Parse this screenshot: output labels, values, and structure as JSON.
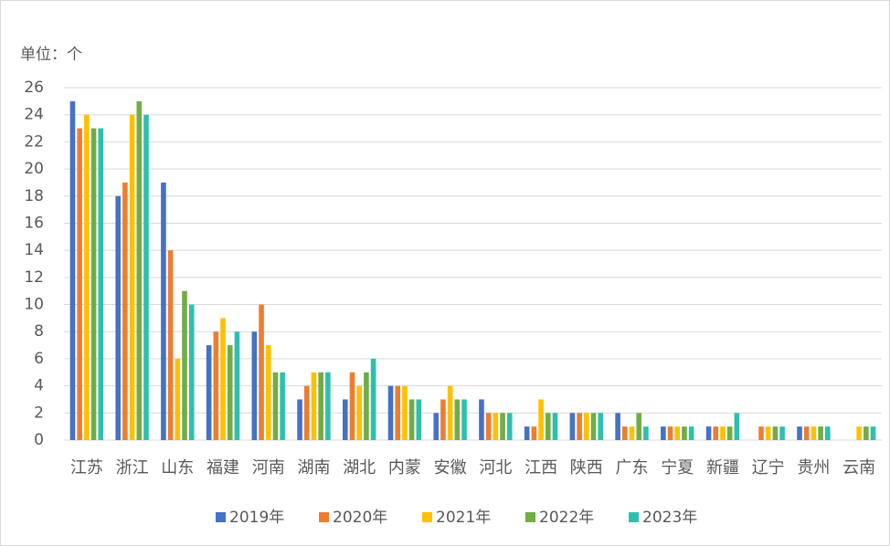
{
  "chart_data": {
    "type": "bar",
    "y_label": "单位：个",
    "categories": [
      "江苏",
      "浙江",
      "山东",
      "福建",
      "河南",
      "湖南",
      "湖北",
      "内蒙",
      "安徽",
      "河北",
      "江西",
      "陕西",
      "广东",
      "宁夏",
      "新疆",
      "辽宁",
      "贵州",
      "云南"
    ],
    "series": [
      {
        "name": "2019年",
        "color": "#4472c4",
        "values": [
          25,
          18,
          19,
          7,
          8,
          3,
          3,
          4,
          2,
          3,
          1,
          2,
          2,
          1,
          1,
          0,
          1,
          0
        ]
      },
      {
        "name": "2020年",
        "color": "#ed7d31",
        "values": [
          23,
          19,
          14,
          8,
          10,
          4,
          5,
          4,
          3,
          2,
          1,
          2,
          1,
          1,
          1,
          1,
          1,
          0
        ]
      },
      {
        "name": "2021年",
        "color": "#ffc000",
        "values": [
          24,
          24,
          6,
          9,
          7,
          5,
          4,
          4,
          4,
          2,
          3,
          2,
          1,
          1,
          1,
          1,
          1,
          1
        ]
      },
      {
        "name": "2022年",
        "color": "#70ad47",
        "values": [
          23,
          25,
          11,
          7,
          5,
          5,
          5,
          3,
          3,
          2,
          2,
          2,
          2,
          1,
          1,
          1,
          1,
          1
        ]
      },
      {
        "name": "2023年",
        "color": "#2ebfae",
        "values": [
          23,
          24,
          10,
          8,
          5,
          5,
          6,
          3,
          3,
          2,
          2,
          2,
          1,
          1,
          2,
          1,
          1,
          1
        ]
      }
    ],
    "ylim": [
      0,
      26
    ],
    "yticks": [
      0,
      2,
      4,
      6,
      8,
      10,
      12,
      14,
      16,
      18,
      20,
      22,
      24,
      26
    ],
    "grid": true,
    "legend": "bottom"
  }
}
